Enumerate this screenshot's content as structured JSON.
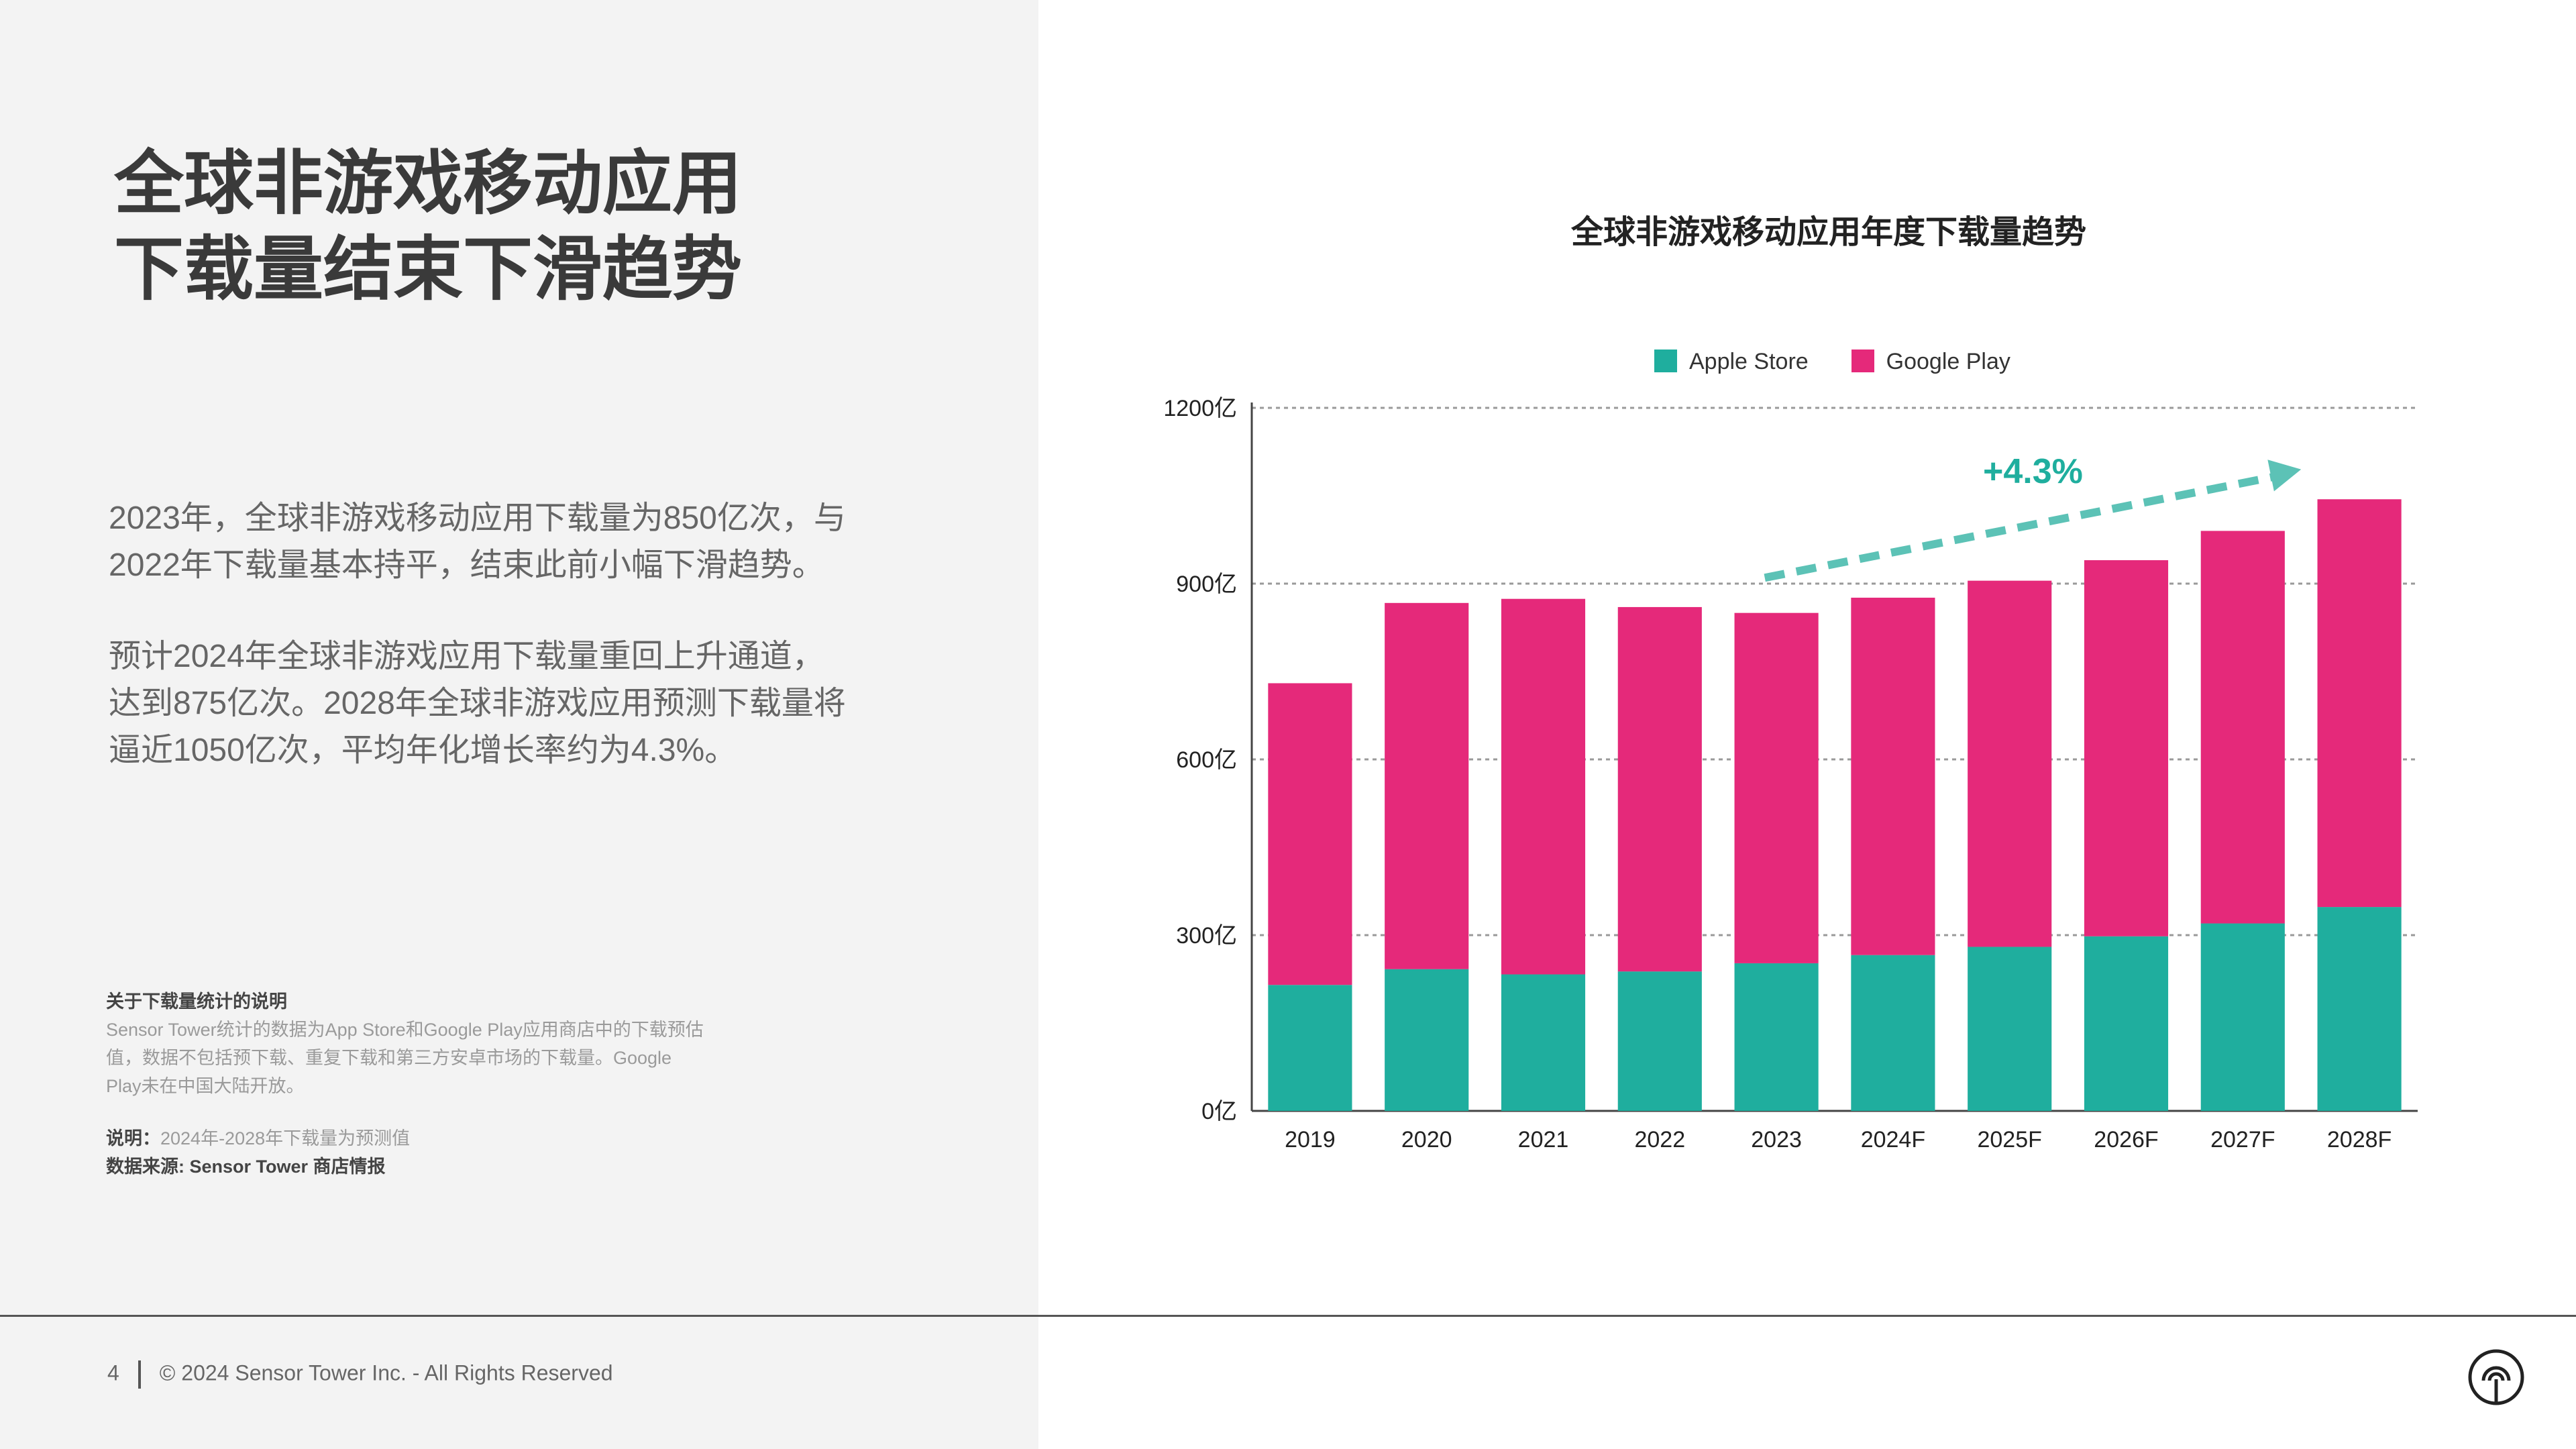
{
  "title_lines": [
    "全球非游戏移动应用",
    "下载量结束下滑趋势"
  ],
  "paragraph1_lines": [
    "2023年，全球非游戏移动应用下载量为850亿次，与",
    "2022年下载量基本持平，结束此前小幅下滑趋势。"
  ],
  "paragraph2_lines": [
    "预计2024年全球非游戏应用下载量重回上升通道，",
    "达到875亿次。2028年全球非游戏应用预测下载量将",
    "逼近1050亿次，平均年化增长率约为4.3%。"
  ],
  "note": {
    "heading": "关于下载量统计的说明",
    "lines": [
      "Sensor  Tower统计的数据为App  Store和Google  Play应用商店中的下载预估",
      "值，数据不包括预下载、重复下载和第三方安卓市场的下载量。Google",
      "Play未在中国大陆开放。"
    ],
    "remark_label": "说明：",
    "remark_text": "2024年-2028年下载量为预测值",
    "source": "数据来源: Sensor Tower 商店情报"
  },
  "footer": {
    "page_number": "4",
    "copyright": "© 2024 Sensor Tower Inc. - All Rights Reserved"
  },
  "logo_icon": "sensor-tower-logo-icon",
  "colors": {
    "apple": "#1fae9e",
    "google": "#e5297a",
    "arrow": "#5cc2b6",
    "growth_text": "#1fae9e"
  },
  "chart_data": {
    "type": "bar",
    "stacked": true,
    "title": "全球非游戏移动应用年度下载量趋势",
    "categories": [
      "2019",
      "2020",
      "2021",
      "2022",
      "2023",
      "2024F",
      "2025F",
      "2026F",
      "2027F",
      "2028F"
    ],
    "series": [
      {
        "name": "Apple Store",
        "values": [
          215,
          242,
          233,
          238,
          252,
          266,
          280,
          298,
          320,
          348
        ]
      },
      {
        "name": "Google Play",
        "values": [
          515,
          625,
          641,
          622,
          598,
          610,
          625,
          642,
          670,
          696
        ]
      }
    ],
    "y_ticks": [
      "0亿",
      "300亿",
      "600亿",
      "900亿",
      "1200亿"
    ],
    "ylim": [
      0,
      1200
    ],
    "grid": true,
    "legend_position": "top",
    "annotation": "+4.3%"
  }
}
